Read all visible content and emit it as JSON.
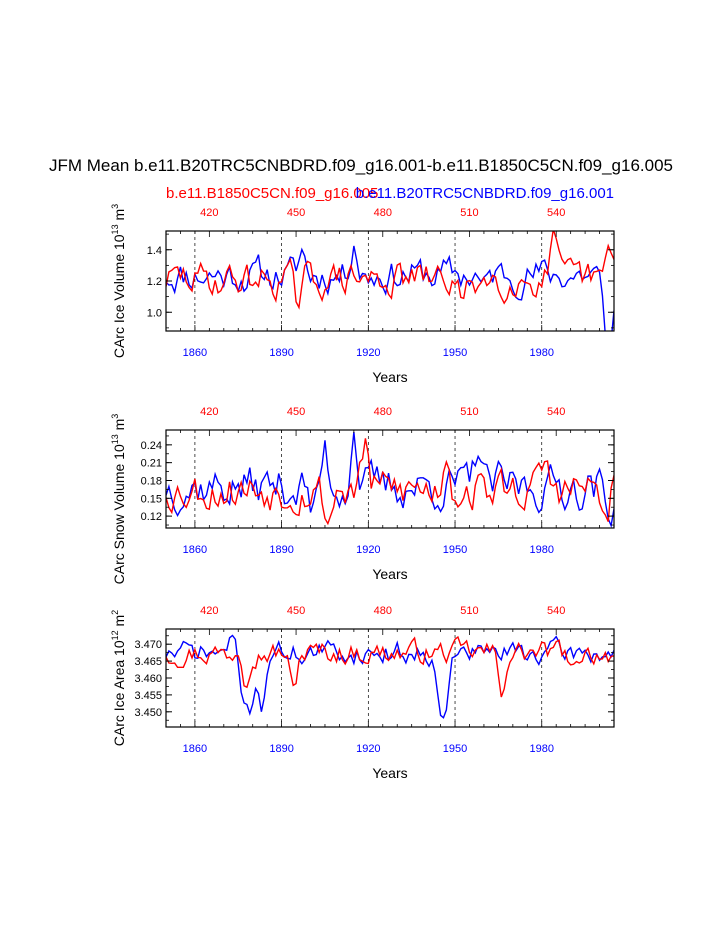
{
  "page": {
    "title": "JFM Mean b.e11.B20TRC5CNBDRD.f09_g16.001-b.e11.B1850C5CN.f09_g16.005",
    "legend_red": "b.e11.B1850C5CN.f09_g16.005",
    "legend_blue": "b.e11.B20TRC5CNBDRD.f09_g16.001",
    "color_red": "#ff0000",
    "color_blue": "#0000ff"
  },
  "chart_data": [
    {
      "type": "line",
      "ylabel_main": "CArc Ice Volume 10",
      "ylabel_exp": "13",
      "ylabel_unit": " m",
      "ylabel_unit_exp": "3",
      "xlabel": "Years",
      "ylim": [
        0.88,
        1.52
      ],
      "yticks": [
        1.0,
        1.2,
        1.4
      ],
      "ytick_labels": [
        "1.0",
        "1.2",
        "1.4"
      ],
      "xlim_bottom": [
        1850,
        2005
      ],
      "xticks_bottom": [
        1860,
        1890,
        1920,
        1950,
        1980
      ],
      "xticks_bottom_labels": [
        "1860",
        "1890",
        "1920",
        "1950",
        "1980"
      ],
      "xticks_top": [
        420,
        450,
        480,
        510,
        540
      ],
      "xticks_top_labels": [
        "420",
        "450",
        "480",
        "510",
        "540"
      ],
      "series": [
        {
          "name": "b.e11.B20TRC5CNBDRD.f09_g16.001",
          "color": "#0000ff",
          "seed": 11,
          "mean": 1.24,
          "amp": 0.09,
          "features": [
            [
              1915,
              0.25
            ],
            [
              1897,
              0.15
            ],
            [
              1960,
              -0.1
            ],
            [
              2002,
              -0.32
            ],
            [
              2004,
              -0.36
            ]
          ]
        },
        {
          "name": "b.e11.B1850C5CN.f09_g16.005",
          "color": "#ff0000",
          "seed": 29,
          "mean": 1.21,
          "amp": 0.09,
          "features": [
            [
              1896,
              -0.19
            ],
            [
              1984,
              0.22
            ],
            [
              2004,
              0.2
            ],
            [
              1953,
              -0.2
            ]
          ]
        }
      ]
    },
    {
      "type": "line",
      "ylabel_main": "CArc Snow Volume 10",
      "ylabel_exp": "13",
      "ylabel_unit": " m",
      "ylabel_unit_exp": "3",
      "xlabel": "Years",
      "ylim": [
        0.1,
        0.265
      ],
      "yticks": [
        0.12,
        0.15,
        0.18,
        0.21,
        0.24
      ],
      "ytick_labels": [
        "0.12",
        "0.15",
        "0.18",
        "0.21",
        "0.24"
      ],
      "xlim_bottom": [
        1850,
        2005
      ],
      "xticks_bottom": [
        1860,
        1890,
        1920,
        1950,
        1980
      ],
      "xticks_bottom_labels": [
        "1860",
        "1890",
        "1920",
        "1950",
        "1980"
      ],
      "xticks_top": [
        420,
        450,
        480,
        510,
        540
      ],
      "xticks_top_labels": [
        "420",
        "450",
        "480",
        "510",
        "540"
      ],
      "series": [
        {
          "name": "b.e11.B20TRC5CNBDRD.f09_g16.001",
          "color": "#0000ff",
          "seed": 37,
          "mean": 0.17,
          "amp": 0.03,
          "features": [
            [
              1915,
              0.095
            ],
            [
              1905,
              0.06
            ],
            [
              1958,
              0.07
            ],
            [
              1901,
              -0.05
            ],
            [
              2003,
              -0.06
            ]
          ]
        },
        {
          "name": "b.e11.B1850C5CN.f09_g16.005",
          "color": "#ff0000",
          "seed": 53,
          "mean": 0.165,
          "amp": 0.028,
          "features": [
            [
              1919,
              0.075
            ],
            [
              1947,
              0.07
            ],
            [
              1906,
              -0.055
            ],
            [
              2002,
              -0.06
            ],
            [
              1981,
              0.045
            ]
          ]
        }
      ]
    },
    {
      "type": "line",
      "ylabel_main": "CArc Ice Area 10",
      "ylabel_exp": "12",
      "ylabel_unit": " m",
      "ylabel_unit_exp": "2",
      "xlabel": "Years",
      "ylim": [
        3.4455,
        3.4745
      ],
      "yticks": [
        3.45,
        3.455,
        3.46,
        3.465,
        3.47
      ],
      "ytick_labels": [
        "3.450",
        "3.455",
        "3.460",
        "3.465",
        "3.470"
      ],
      "xlim_bottom": [
        1850,
        2005
      ],
      "xticks_bottom": [
        1860,
        1890,
        1920,
        1950,
        1980
      ],
      "xticks_bottom_labels": [
        "1860",
        "1890",
        "1920",
        "1950",
        "1980"
      ],
      "xticks_top": [
        420,
        450,
        480,
        510,
        540
      ],
      "xticks_top_labels": [
        "420",
        "450",
        "480",
        "510",
        "540"
      ],
      "series": [
        {
          "name": "b.e11.B20TRC5CNBDRD.f09_g16.001",
          "color": "#0000ff",
          "seed": 71,
          "mean": 3.4675,
          "amp": 0.0028,
          "features": [
            [
              1879,
              -0.021
            ],
            [
              1883,
              -0.017
            ],
            [
              1876,
              -0.013
            ],
            [
              1947,
              -0.016
            ],
            [
              1945,
              -0.012
            ],
            [
              1874,
              0.007
            ]
          ]
        },
        {
          "name": "b.e11.B1850C5CN.f09_g16.005",
          "color": "#ff0000",
          "seed": 97,
          "mean": 3.4675,
          "amp": 0.0028,
          "features": [
            [
              1894,
              -0.012
            ],
            [
              1966,
              -0.012
            ],
            [
              1876,
              0.006
            ],
            [
              1877,
              -0.009
            ],
            [
              1990,
              -0.007
            ]
          ]
        }
      ]
    }
  ]
}
